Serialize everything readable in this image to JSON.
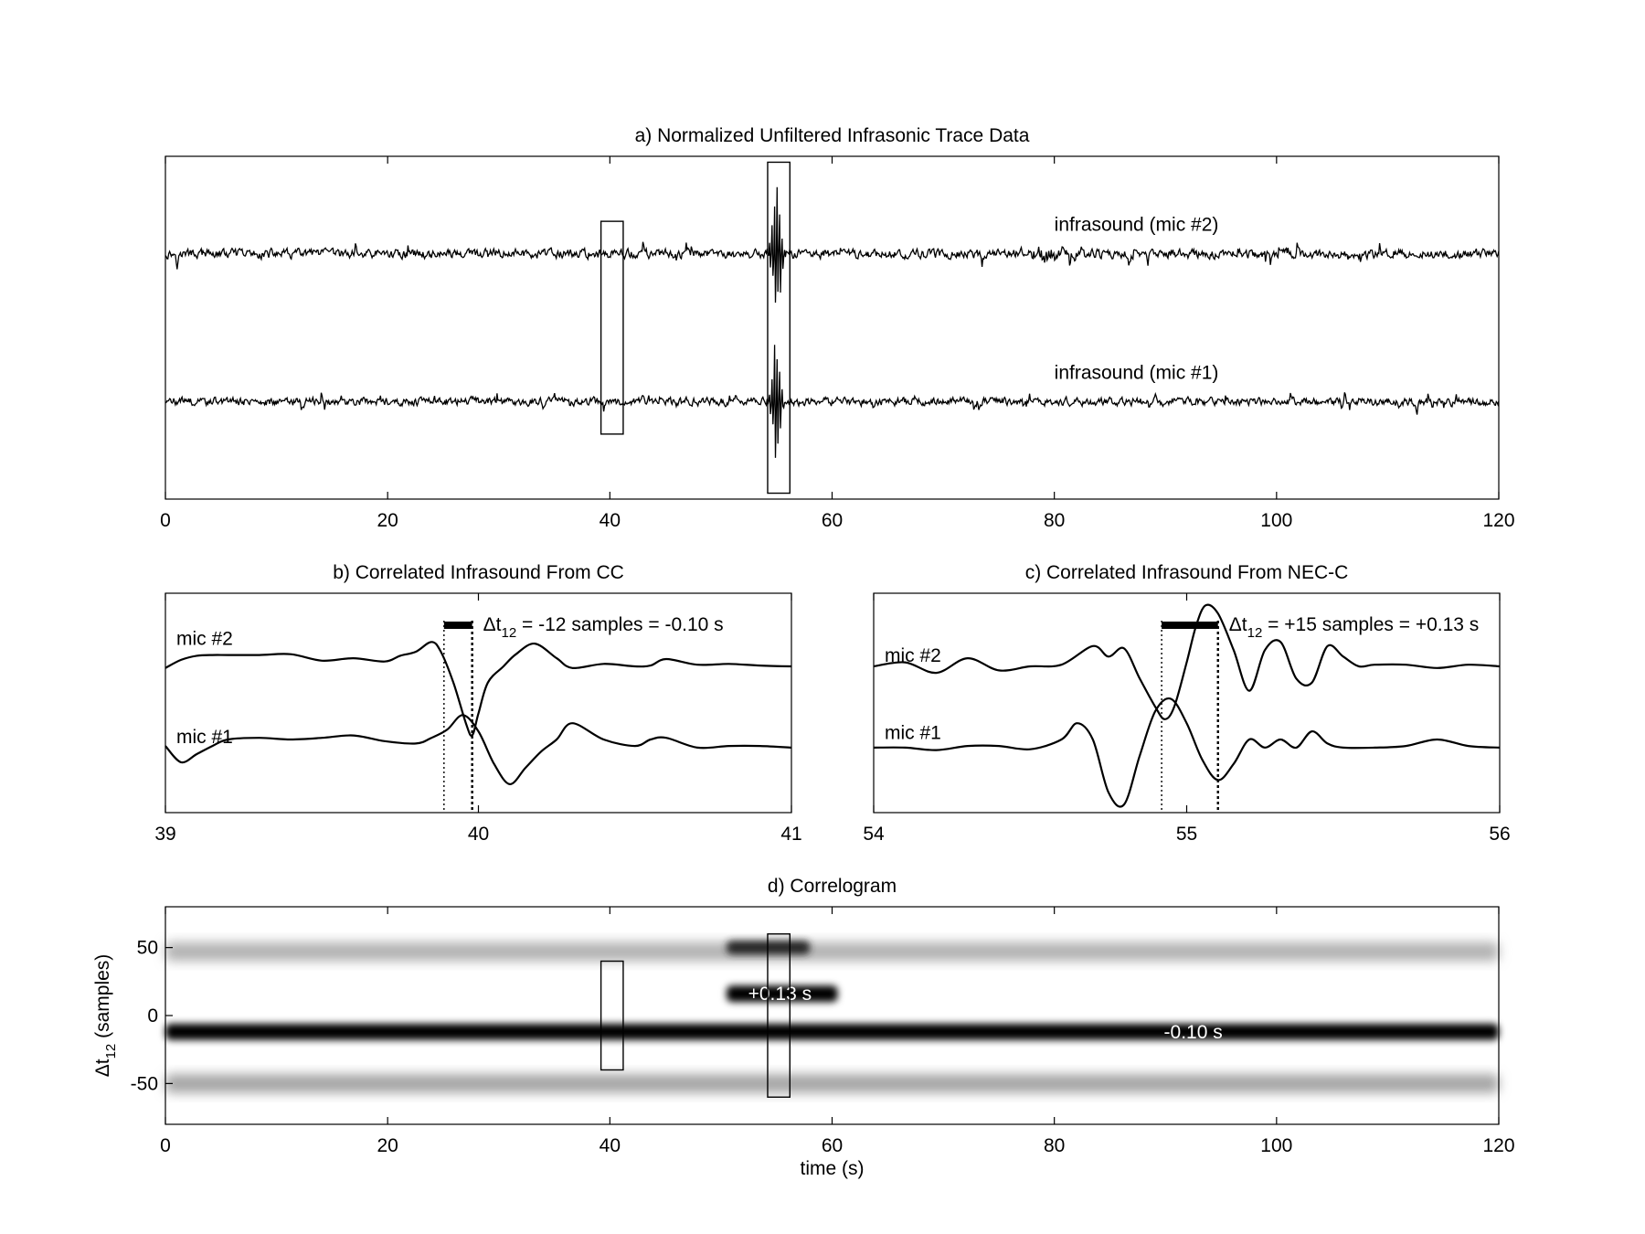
{
  "chart_data": [
    {
      "id": "a",
      "type": "line",
      "title": "a) Normalized Unfiltered Infrasonic Trace Data",
      "xlabel": "",
      "ylabel": "",
      "xlim": [
        0,
        120
      ],
      "xticks": [
        0,
        20,
        40,
        60,
        80,
        100,
        120
      ],
      "yticks": [],
      "series": [
        {
          "name": "infrasound (mic #2)",
          "label": "infrasound (mic #2)",
          "baseline": 1.0,
          "noise": 0.025,
          "bursts": [
            {
              "x": 55.0,
              "amp": 0.55,
              "width": 0.7
            },
            {
              "x": 79.5,
              "amp": 0.03,
              "width": 3.0
            }
          ]
        },
        {
          "name": "infrasound (mic #1)",
          "label": "infrasound (mic #1)",
          "baseline": 0.0,
          "noise": 0.022,
          "bursts": [
            {
              "x": 55.0,
              "amp": 0.5,
              "width": 0.6
            }
          ]
        }
      ],
      "highlight_boxes": [
        {
          "x": [
            39.2,
            41.2
          ],
          "y": [
            -0.22,
            1.22
          ]
        },
        {
          "x": [
            54.2,
            56.2
          ],
          "y": [
            -0.62,
            1.62
          ]
        }
      ],
      "ylim": [
        -0.66,
        1.66
      ]
    },
    {
      "id": "b",
      "type": "line",
      "title": "b) Correlated Infrasound From CC",
      "xlim": [
        39,
        41
      ],
      "xticks": [
        39,
        40,
        41
      ],
      "ylim": [
        -1.1,
        1.6
      ],
      "series": [
        {
          "name": "mic #2",
          "label": "mic #2",
          "x": [
            39.0,
            39.05,
            39.1,
            39.15,
            39.2,
            39.3,
            39.4,
            39.5,
            39.6,
            39.7,
            39.75,
            39.8,
            39.85,
            39.88,
            39.92,
            39.96,
            39.98,
            40.0,
            40.03,
            40.08,
            40.12,
            40.18,
            40.25,
            40.3,
            40.4,
            40.5,
            40.55,
            40.6,
            40.7,
            40.8,
            40.9,
            41.0
          ],
          "y": [
            0.68,
            0.78,
            0.83,
            0.84,
            0.84,
            0.84,
            0.85,
            0.77,
            0.8,
            0.76,
            0.83,
            0.88,
            1.0,
            0.88,
            0.5,
            0.0,
            -0.15,
            0.12,
            0.5,
            0.7,
            0.85,
            0.98,
            0.8,
            0.68,
            0.73,
            0.7,
            0.71,
            0.79,
            0.72,
            0.73,
            0.71,
            0.7
          ]
        },
        {
          "name": "mic #1",
          "label": "mic #1",
          "x": [
            39.0,
            39.05,
            39.1,
            39.15,
            39.2,
            39.3,
            39.4,
            39.5,
            39.6,
            39.7,
            39.8,
            39.85,
            39.9,
            39.95,
            40.0,
            40.05,
            40.1,
            40.15,
            40.2,
            40.25,
            40.3,
            40.4,
            40.5,
            40.55,
            40.6,
            40.7,
            40.8,
            40.9,
            41.0
          ],
          "y": [
            -0.28,
            -0.48,
            -0.38,
            -0.28,
            -0.2,
            -0.18,
            -0.2,
            -0.18,
            -0.15,
            -0.22,
            -0.25,
            -0.18,
            -0.08,
            0.1,
            -0.1,
            -0.5,
            -0.75,
            -0.55,
            -0.35,
            -0.2,
            0.0,
            -0.2,
            -0.28,
            -0.2,
            -0.18,
            -0.3,
            -0.28,
            -0.28,
            -0.3
          ]
        }
      ],
      "markers": [
        39.89,
        39.98
      ],
      "annotation": {
        "prefix": "Δt",
        "subscript": "12",
        "text": " = -12 samples = -0.10 s"
      }
    },
    {
      "id": "c",
      "type": "line",
      "title": "c) Correlated Infrasound From NEC-C",
      "xlim": [
        54,
        56
      ],
      "xticks": [
        54,
        55,
        56
      ],
      "ylim": [
        -1.1,
        1.6
      ],
      "series": [
        {
          "name": "mic #2",
          "label": "mic #2",
          "x": [
            54.0,
            54.1,
            54.2,
            54.3,
            54.4,
            54.5,
            54.6,
            54.7,
            54.75,
            54.8,
            54.85,
            54.9,
            54.93,
            54.96,
            55.0,
            55.03,
            55.06,
            55.1,
            55.15,
            55.2,
            55.25,
            55.3,
            55.35,
            55.4,
            55.45,
            55.5,
            55.55,
            55.6,
            55.7,
            55.8,
            55.9,
            56.0
          ],
          "y": [
            0.7,
            0.75,
            0.62,
            0.8,
            0.65,
            0.7,
            0.72,
            0.95,
            0.82,
            0.92,
            0.55,
            0.2,
            0.05,
            0.2,
            0.75,
            1.2,
            1.45,
            1.35,
            0.9,
            0.4,
            0.9,
            1.0,
            0.55,
            0.5,
            0.95,
            0.82,
            0.7,
            0.72,
            0.72,
            0.68,
            0.72,
            0.7
          ]
        },
        {
          "name": "mic #1",
          "label": "mic #1",
          "x": [
            54.0,
            54.1,
            54.2,
            54.3,
            54.4,
            54.5,
            54.6,
            54.65,
            54.7,
            54.75,
            54.8,
            54.85,
            54.9,
            54.95,
            55.0,
            55.05,
            55.1,
            55.15,
            55.2,
            55.25,
            55.3,
            55.35,
            55.4,
            55.45,
            55.5,
            55.6,
            55.7,
            55.8,
            55.9,
            56.0
          ],
          "y": [
            -0.3,
            -0.3,
            -0.33,
            -0.28,
            -0.28,
            -0.32,
            -0.2,
            0.0,
            -0.2,
            -0.85,
            -1.0,
            -0.4,
            0.15,
            0.3,
            0.0,
            -0.45,
            -0.7,
            -0.5,
            -0.2,
            -0.3,
            -0.2,
            -0.3,
            -0.1,
            -0.25,
            -0.3,
            -0.3,
            -0.28,
            -0.2,
            -0.28,
            -0.3
          ]
        }
      ],
      "markers": [
        54.92,
        55.1
      ],
      "annotation": {
        "prefix": "Δt",
        "subscript": "12",
        "text": " = +15 samples = +0.13 s"
      }
    },
    {
      "id": "d",
      "type": "heatmap",
      "title": "d) Correlogram",
      "xlabel": "time (s)",
      "ylabel": {
        "prefix": "Δt",
        "subscript": "12",
        "suffix": " (samples)"
      },
      "xlim": [
        0,
        120
      ],
      "ylim": [
        -80,
        80
      ],
      "xticks": [
        0,
        20,
        40,
        60,
        80,
        100,
        120
      ],
      "yticks": [
        50,
        0,
        -50
      ],
      "colormap": "white-to-black",
      "bands": [
        {
          "x": [
            0,
            120
          ],
          "y": -12,
          "thickness": 12,
          "intensity": 1.0
        },
        {
          "x": [
            0,
            120
          ],
          "y": 47,
          "thickness": 14,
          "intensity": 0.3
        },
        {
          "x": [
            0,
            120
          ],
          "y": -50,
          "thickness": 14,
          "intensity": 0.35
        },
        {
          "x": [
            50.5,
            60.5
          ],
          "y": 16,
          "thickness": 12,
          "intensity": 1.0
        },
        {
          "x": [
            50.5,
            58
          ],
          "y": 50,
          "thickness": 10,
          "intensity": 0.85
        }
      ],
      "annotations": [
        {
          "text": "+0.13 s",
          "x": 55.3,
          "y": 16
        },
        {
          "text": "-0.10 s",
          "x": 92.5,
          "y": -12
        }
      ],
      "highlight_boxes": [
        {
          "x": [
            39.2,
            41.2
          ],
          "y": [
            -40,
            40
          ]
        },
        {
          "x": [
            54.2,
            56.2
          ],
          "y": [
            -60,
            60
          ]
        }
      ]
    }
  ]
}
